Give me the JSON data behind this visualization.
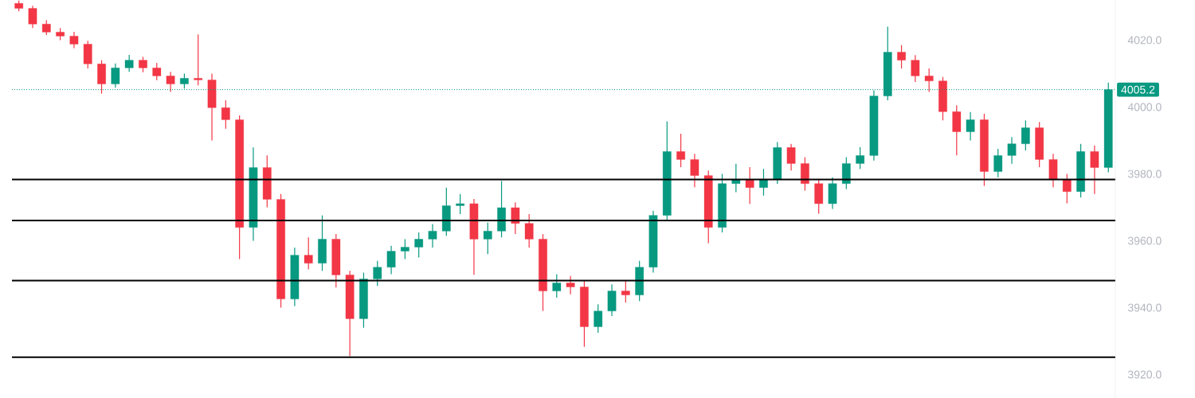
{
  "chart_data": {
    "type": "candlestick",
    "tick_labels": "y",
    "categories": [
      null,
      null,
      null,
      null,
      null,
      null,
      null,
      null,
      null,
      null,
      null,
      null,
      null,
      null,
      null,
      null,
      null,
      null,
      null,
      null,
      null,
      null,
      null,
      null,
      null,
      null,
      null,
      null,
      null,
      null,
      null,
      null,
      null,
      null,
      null,
      null,
      null,
      null,
      null,
      null,
      null,
      null,
      null,
      null,
      null,
      null,
      null,
      null,
      null,
      null,
      null,
      null,
      null,
      null,
      null,
      null,
      null,
      null,
      null,
      null,
      null,
      null,
      null,
      null,
      null,
      null,
      null,
      null,
      null,
      null,
      null,
      null,
      null,
      null,
      null,
      null,
      null,
      null,
      null,
      null
    ],
    "ohlc": [
      [
        4031.0,
        4031.8,
        4028.6,
        4029.5
      ],
      [
        4029.5,
        4030.3,
        4023.6,
        4024.8
      ],
      [
        4024.8,
        4026.0,
        4021.5,
        4022.4
      ],
      [
        4022.4,
        4023.6,
        4020.0,
        4021.2
      ],
      [
        4021.2,
        4022.5,
        4017.6,
        4018.8
      ],
      [
        4018.8,
        4019.8,
        4011.5,
        4012.9
      ],
      [
        4012.9,
        4014.0,
        4004.0,
        4006.9
      ],
      [
        4006.9,
        4013.0,
        4005.8,
        4011.7
      ],
      [
        4011.7,
        4015.6,
        4010.5,
        4014.0
      ],
      [
        4014.0,
        4015.0,
        4010.4,
        4011.7
      ],
      [
        4011.7,
        4013.2,
        4008.0,
        4009.3
      ],
      [
        4009.3,
        4010.5,
        4004.5,
        4006.9
      ],
      [
        4006.9,
        4010.0,
        4005.5,
        4008.6
      ],
      [
        4008.6,
        4021.7,
        4006.5,
        4008.1
      ],
      [
        4008.1,
        4010.0,
        3990.0,
        3999.8
      ],
      [
        3999.8,
        4002.0,
        3993.5,
        3996.2
      ],
      [
        3996.2,
        3997.5,
        3954.5,
        3964.0
      ],
      [
        3964.0,
        3987.9,
        3960.0,
        3981.9
      ],
      [
        3981.9,
        3985.5,
        3970.0,
        3972.4
      ],
      [
        3972.4,
        3974.0,
        3940.0,
        3942.6
      ],
      [
        3942.6,
        3958.0,
        3940.5,
        3955.7
      ],
      [
        3955.7,
        3961.0,
        3951.5,
        3953.3
      ],
      [
        3953.3,
        3967.6,
        3951.0,
        3960.5
      ],
      [
        3960.5,
        3962.0,
        3946.0,
        3949.8
      ],
      [
        3949.8,
        3951.0,
        3925.5,
        3936.7
      ],
      [
        3936.7,
        3950.5,
        3934.0,
        3948.6
      ],
      [
        3948.6,
        3954.0,
        3946.5,
        3952.1
      ],
      [
        3952.1,
        3958.5,
        3950.0,
        3956.9
      ],
      [
        3956.9,
        3960.5,
        3954.5,
        3958.1
      ],
      [
        3958.1,
        3962.5,
        3955.0,
        3960.5
      ],
      [
        3960.5,
        3965.0,
        3958.0,
        3962.9
      ],
      [
        3962.9,
        3975.9,
        3961.5,
        3970.5
      ],
      [
        3970.5,
        3974.0,
        3968.0,
        3971.1
      ],
      [
        3971.1,
        3972.5,
        3949.8,
        3960.5
      ],
      [
        3960.5,
        3965.5,
        3956.0,
        3962.9
      ],
      [
        3962.9,
        3977.9,
        3961.0,
        3969.9
      ],
      [
        3969.9,
        3971.5,
        3962.0,
        3965.2
      ],
      [
        3965.2,
        3968.0,
        3958.0,
        3960.5
      ],
      [
        3960.5,
        3962.0,
        3939.0,
        3945.0
      ],
      [
        3945.0,
        3950.0,
        3943.0,
        3947.4
      ],
      [
        3947.4,
        3949.5,
        3944.0,
        3946.2
      ],
      [
        3946.2,
        3948.0,
        3928.3,
        3934.3
      ],
      [
        3934.3,
        3941.0,
        3932.5,
        3939.0
      ],
      [
        3939.0,
        3947.0,
        3937.5,
        3945.0
      ],
      [
        3945.0,
        3948.0,
        3941.5,
        3943.8
      ],
      [
        3943.8,
        3954.0,
        3942.0,
        3952.1
      ],
      [
        3952.1,
        3969.0,
        3950.5,
        3967.6
      ],
      [
        3967.6,
        3995.7,
        3966.0,
        3986.7
      ],
      [
        3986.7,
        3992.0,
        3982.0,
        3984.3
      ],
      [
        3984.3,
        3986.0,
        3976.0,
        3979.5
      ],
      [
        3979.5,
        3981.0,
        3959.3,
        3964.0
      ],
      [
        3964.0,
        3980.0,
        3962.5,
        3977.1
      ],
      [
        3977.1,
        3983.0,
        3974.5,
        3978.3
      ],
      [
        3978.3,
        3982.0,
        3971.0,
        3975.9
      ],
      [
        3975.9,
        3981.5,
        3973.5,
        3978.3
      ],
      [
        3978.3,
        3989.5,
        3977.0,
        3987.9
      ],
      [
        3987.9,
        3989.0,
        3981.0,
        3983.1
      ],
      [
        3983.1,
        3985.0,
        3975.0,
        3977.1
      ],
      [
        3977.1,
        3978.5,
        3968.1,
        3971.1
      ],
      [
        3971.1,
        3979.0,
        3969.5,
        3977.1
      ],
      [
        3977.1,
        3985.0,
        3975.5,
        3983.1
      ],
      [
        3983.1,
        3988.0,
        3981.5,
        3985.5
      ],
      [
        3985.5,
        4005.0,
        3984.0,
        4003.3
      ],
      [
        4003.3,
        4024.0,
        4002.0,
        4016.4
      ],
      [
        4016.4,
        4018.5,
        4011.5,
        4014.0
      ],
      [
        4014.0,
        4015.5,
        4007.5,
        4009.3
      ],
      [
        4009.3,
        4011.5,
        4004.5,
        4007.8
      ],
      [
        4007.8,
        4009.0,
        3996.0,
        3998.6
      ],
      [
        3998.6,
        4000.5,
        3985.5,
        3992.6
      ],
      [
        3992.6,
        3998.5,
        3990.0,
        3996.2
      ],
      [
        3996.2,
        3998.0,
        3976.4,
        3980.7
      ],
      [
        3980.7,
        3987.5,
        3979.0,
        3985.5
      ],
      [
        3985.5,
        3991.0,
        3983.0,
        3989.0
      ],
      [
        3989.0,
        3996.0,
        3987.0,
        3993.8
      ],
      [
        3993.8,
        3995.5,
        3982.0,
        3984.3
      ],
      [
        3984.3,
        3986.0,
        3976.0,
        3978.3
      ],
      [
        3978.3,
        3980.0,
        3971.2,
        3974.7
      ],
      [
        3974.7,
        3989.0,
        3973.0,
        3986.7
      ],
      [
        3986.7,
        3988.5,
        3974.0,
        3981.9
      ],
      [
        3981.9,
        4007.3,
        3980.5,
        4005.2
      ]
    ],
    "colors": [
      "#f23645",
      "#f23645",
      "#f23645",
      "#f23645",
      "#f23645",
      "#f23645",
      "#f23645",
      "#089981",
      "#089981",
      "#f23645",
      "#f23645",
      "#f23645",
      "#089981",
      "#f23645",
      "#f23645",
      "#f23645",
      "#f23645",
      "#089981",
      "#f23645",
      "#f23645",
      "#089981",
      "#f23645",
      "#089981",
      "#f23645",
      "#f23645",
      "#089981",
      "#089981",
      "#089981",
      "#089981",
      "#089981",
      "#089981",
      "#089981",
      "#089981",
      "#f23645",
      "#089981",
      "#089981",
      "#f23645",
      "#f23645",
      "#f23645",
      "#089981",
      "#f23645",
      "#f23645",
      "#089981",
      "#089981",
      "#f23645",
      "#089981",
      "#089981",
      "#089981",
      "#f23645",
      "#f23645",
      "#f23645",
      "#089981",
      "#089981",
      "#f23645",
      "#089981",
      "#089981",
      "#f23645",
      "#f23645",
      "#f23645",
      "#089981",
      "#089981",
      "#089981",
      "#089981",
      "#089981",
      "#f23645",
      "#f23645",
      "#f23645",
      "#f23645",
      "#f23645",
      "#089981",
      "#f23645",
      "#089981",
      "#089981",
      "#089981",
      "#f23645",
      "#f23645",
      "#f23645",
      "#089981",
      "#f23645",
      "#089981"
    ],
    "ref_lines": [
      {
        "axis": "y",
        "value": 4005.2,
        "label": "4005.2",
        "color": "#089981",
        "line_style": "dotted"
      },
      {
        "axis": "y",
        "value": 3978.3,
        "color": "#000000",
        "line_style": "solid"
      },
      {
        "axis": "y",
        "value": 3966.1,
        "color": "#000000",
        "line_style": "solid"
      },
      {
        "axis": "y",
        "value": 3948.1,
        "color": "#000000",
        "line_style": "solid"
      },
      {
        "axis": "y",
        "value": 3925.2,
        "color": "#000000",
        "line_style": "solid"
      }
    ],
    "ylim": [
      3913,
      4032
    ],
    "yticks": [
      {
        "value": 3920,
        "label": "3920.0"
      },
      {
        "value": 3940,
        "label": "3940.0"
      },
      {
        "value": 3960,
        "label": "3960.0"
      },
      {
        "value": 3980,
        "label": "3980.0"
      },
      {
        "value": 4000,
        "label": "4000.0"
      },
      {
        "value": 4020,
        "label": "4020.0"
      }
    ]
  }
}
